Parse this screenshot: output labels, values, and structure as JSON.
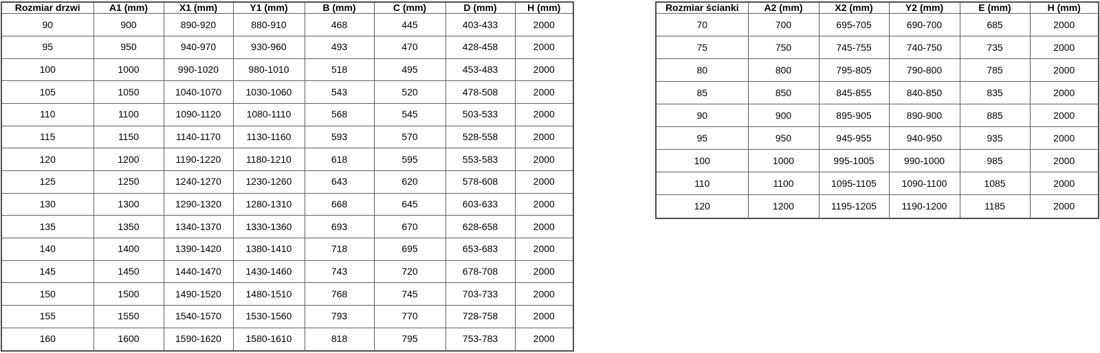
{
  "tables": [
    {
      "name": "door-size-table",
      "headers": [
        "Rozmiar drzwi",
        "A1 (mm)",
        "X1 (mm)",
        "Y1 (mm)",
        "B (mm)",
        "C (mm)",
        "D (mm)",
        "H (mm)"
      ],
      "rows": [
        [
          "90",
          "900",
          "890-920",
          "880-910",
          "468",
          "445",
          "403-433",
          "2000"
        ],
        [
          "95",
          "950",
          "940-970",
          "930-960",
          "493",
          "470",
          "428-458",
          "2000"
        ],
        [
          "100",
          "1000",
          "990-1020",
          "980-1010",
          "518",
          "495",
          "453-483",
          "2000"
        ],
        [
          "105",
          "1050",
          "1040-1070",
          "1030-1060",
          "543",
          "520",
          "478-508",
          "2000"
        ],
        [
          "110",
          "1100",
          "1090-1120",
          "1080-1110",
          "568",
          "545",
          "503-533",
          "2000"
        ],
        [
          "115",
          "1150",
          "1140-1170",
          "1130-1160",
          "593",
          "570",
          "528-558",
          "2000"
        ],
        [
          "120",
          "1200",
          "1190-1220",
          "1180-1210",
          "618",
          "595",
          "553-583",
          "2000"
        ],
        [
          "125",
          "1250",
          "1240-1270",
          "1230-1260",
          "643",
          "620",
          "578-608",
          "2000"
        ],
        [
          "130",
          "1300",
          "1290-1320",
          "1280-1310",
          "668",
          "645",
          "603-633",
          "2000"
        ],
        [
          "135",
          "1350",
          "1340-1370",
          "1330-1360",
          "693",
          "670",
          "628-658",
          "2000"
        ],
        [
          "140",
          "1400",
          "1390-1420",
          "1380-1410",
          "718",
          "695",
          "653-683",
          "2000"
        ],
        [
          "145",
          "1450",
          "1440-1470",
          "1430-1460",
          "743",
          "720",
          "678-708",
          "2000"
        ],
        [
          "150",
          "1500",
          "1490-1520",
          "1480-1510",
          "768",
          "745",
          "703-733",
          "2000"
        ],
        [
          "155",
          "1550",
          "1540-1570",
          "1530-1560",
          "793",
          "770",
          "728-758",
          "2000"
        ],
        [
          "160",
          "1600",
          "1590-1620",
          "1580-1610",
          "818",
          "795",
          "753-783",
          "2000"
        ]
      ]
    },
    {
      "name": "wall-size-table",
      "headers": [
        "Rozmiar ścianki",
        "A2 (mm)",
        "X2 (mm)",
        "Y2 (mm)",
        "E (mm)",
        "H (mm)"
      ],
      "rows": [
        [
          "70",
          "700",
          "695-705",
          "690-700",
          "685",
          "2000"
        ],
        [
          "75",
          "750",
          "745-755",
          "740-750",
          "735",
          "2000"
        ],
        [
          "80",
          "800",
          "795-805",
          "790-800",
          "785",
          "2000"
        ],
        [
          "85",
          "850",
          "845-855",
          "840-850",
          "835",
          "2000"
        ],
        [
          "90",
          "900",
          "895-905",
          "890-900",
          "885",
          "2000"
        ],
        [
          "95",
          "950",
          "945-955",
          "940-950",
          "935",
          "2000"
        ],
        [
          "100",
          "1000",
          "995-1005",
          "990-1000",
          "985",
          "2000"
        ],
        [
          "110",
          "1100",
          "1095-1105",
          "1090-1100",
          "1085",
          "2000"
        ],
        [
          "120",
          "1200",
          "1195-1205",
          "1190-1200",
          "1185",
          "2000"
        ]
      ]
    }
  ],
  "colors": {
    "border": "#5f5f5f",
    "outer_border": "#4d4d4d",
    "text": "#000000",
    "background": "#ffffff"
  }
}
